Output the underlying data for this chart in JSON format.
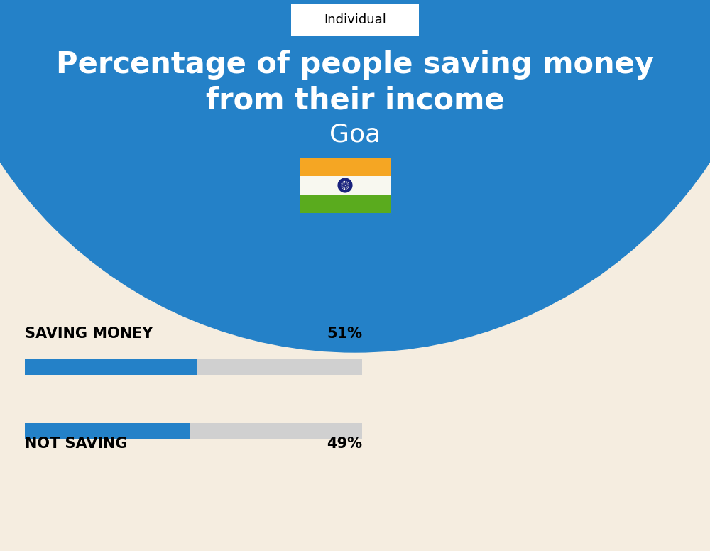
{
  "title_line1": "Percentage of people saving money",
  "title_line2": "from their income",
  "subtitle": "Goa",
  "tab_label": "Individual",
  "background_color": "#f5ede0",
  "blue_bg_color": "#2481c8",
  "bar1_label": "SAVING MONEY",
  "bar1_value": 51,
  "bar1_pct": "51%",
  "bar2_label": "NOT SAVING",
  "bar2_value": 49,
  "bar2_pct": "49%",
  "bar_active_color": "#2481c8",
  "bar_inactive_color": "#d0d0d0",
  "label_fontsize": 15,
  "pct_fontsize": 15,
  "title_fontsize": 30,
  "subtitle_fontsize": 26,
  "tab_fontsize": 13,
  "flag_orange": "#f5a623",
  "flag_white": "#f8f8f0",
  "flag_green": "#5aab1e",
  "flag_wheel": "#1a237e"
}
